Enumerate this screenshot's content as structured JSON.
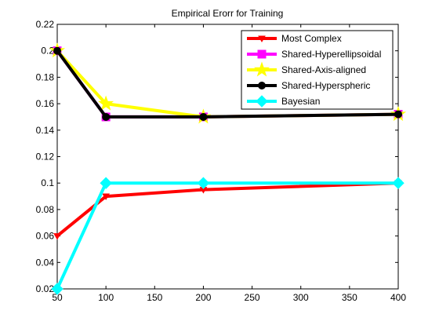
{
  "chart_data": {
    "type": "line",
    "title": "Empirical Erorr for Training",
    "xlabel": "",
    "ylabel": "",
    "xlim": [
      50,
      400
    ],
    "ylim": [
      0.02,
      0.22
    ],
    "xticks": [
      "50",
      "100",
      "150",
      "200",
      "250",
      "300",
      "350",
      "400"
    ],
    "yticks": [
      "0.02",
      "0.04",
      "0.06",
      "0.08",
      "0.1",
      "0.12",
      "0.14",
      "0.16",
      "0.18",
      "0.2",
      "0.22"
    ],
    "grid": false,
    "legend_position": "top-right",
    "x": [
      50,
      100,
      200,
      400
    ],
    "series": [
      {
        "name": "Most Complex",
        "values": [
          0.06,
          0.09,
          0.095,
          0.1
        ],
        "color": "#ff0000",
        "marker": "triangle-down"
      },
      {
        "name": "Shared-Hyperellipsoidal",
        "values": [
          0.2,
          0.15,
          0.15,
          0.152
        ],
        "color": "#ff00ff",
        "marker": "square"
      },
      {
        "name": "Shared-Axis-aligned",
        "values": [
          0.2,
          0.16,
          0.15,
          0.152
        ],
        "color": "#ffff00",
        "marker": "star"
      },
      {
        "name": "Shared-Hyperspheric",
        "values": [
          0.2,
          0.15,
          0.15,
          0.152
        ],
        "color": "#000000",
        "marker": "circle"
      },
      {
        "name": "Bayesian",
        "values": [
          0.02,
          0.1,
          0.1,
          0.1
        ],
        "color": "#00ffff",
        "marker": "diamond"
      }
    ]
  }
}
